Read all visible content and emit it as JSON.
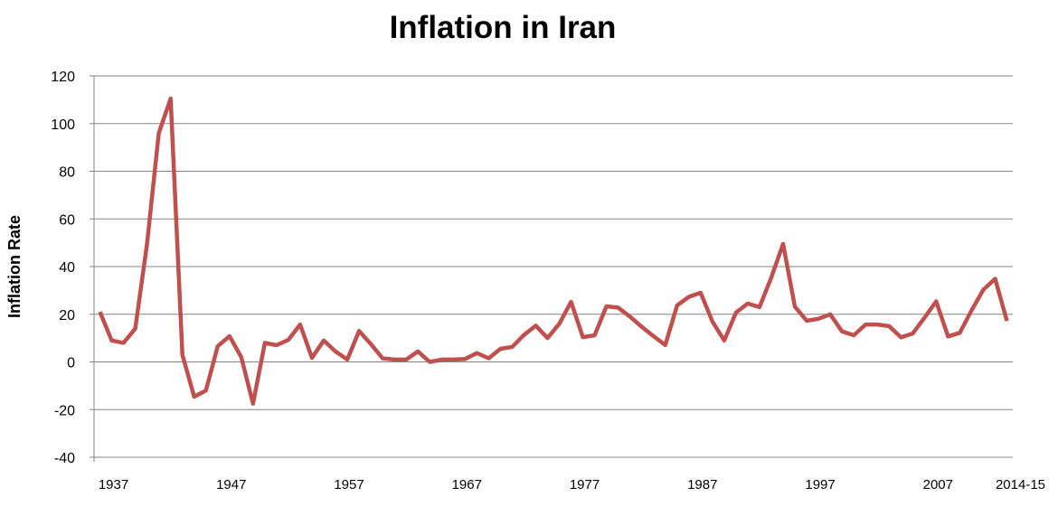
{
  "chart_data": {
    "type": "line",
    "title": "Inflation in Iran",
    "xlabel": "",
    "ylabel": "Inflation Rate",
    "ylim": [
      -40,
      120
    ],
    "yticks": [
      -40,
      -20,
      0,
      20,
      40,
      60,
      80,
      100,
      120
    ],
    "grid": true,
    "legend": "none",
    "x_tick_labels": [
      "1937",
      "1947",
      "1957",
      "1967",
      "1977",
      "1987",
      "1997",
      "2007",
      "2014-15"
    ],
    "x_tick_indices": [
      0,
      10,
      20,
      30,
      40,
      50,
      60,
      70,
      77
    ],
    "series": [
      {
        "name": "Inflation Rate",
        "color": "#C0504D",
        "x": [
          1937,
          1938,
          1939,
          1940,
          1941,
          1942,
          1943,
          1944,
          1945,
          1946,
          1947,
          1948,
          1949,
          1950,
          1951,
          1952,
          1953,
          1954,
          1955,
          1956,
          1957,
          1958,
          1959,
          1960,
          1961,
          1962,
          1963,
          1964,
          1965,
          1966,
          1967,
          1968,
          1969,
          1970,
          1971,
          1972,
          1973,
          1974,
          1975,
          1976,
          1977,
          1978,
          1979,
          1980,
          1981,
          1982,
          1983,
          1984,
          1985,
          1986,
          1987,
          1988,
          1989,
          1990,
          1991,
          1992,
          1993,
          1994,
          1995,
          1996,
          1997,
          1998,
          1999,
          2000,
          2001,
          2002,
          2003,
          2004,
          2005,
          2006,
          2007,
          2008,
          2009,
          2010,
          2011,
          2012,
          2013,
          2014
        ],
        "values": [
          21,
          9,
          8,
          14,
          49.5,
          96,
          110.5,
          3,
          -14.6,
          -12,
          6.6,
          10.8,
          2,
          -17.5,
          8,
          7,
          9.3,
          15.7,
          1.7,
          9,
          4.4,
          1,
          13,
          7.5,
          1.5,
          1,
          1,
          4.4,
          0,
          1,
          1,
          1.2,
          3.7,
          1.5,
          5.5,
          6.3,
          11.3,
          15.2,
          10,
          16,
          25.2,
          10.4,
          11.2,
          23.3,
          22.8,
          19,
          14.7,
          10.8,
          7.1,
          23.7,
          27.3,
          29,
          17,
          9,
          20.7,
          24.5,
          23,
          35.5,
          49.5,
          23.2,
          17.3,
          18.1,
          20,
          12.8,
          11.2,
          15.7,
          15.7,
          15,
          10.3,
          11.9,
          18.5,
          25.4,
          10.7,
          12.2,
          21.6,
          30.3,
          34.9,
          17.2
        ]
      }
    ]
  }
}
